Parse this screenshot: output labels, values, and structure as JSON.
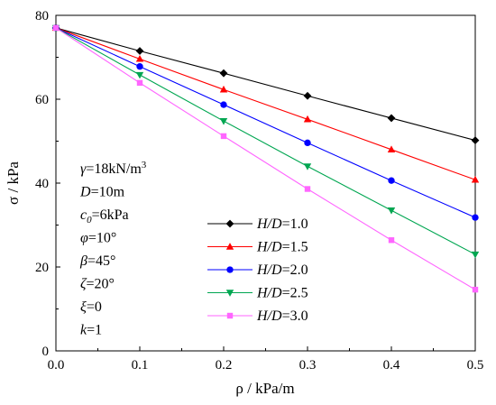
{
  "chart_data": {
    "type": "line",
    "x": [
      0.0,
      0.1,
      0.2,
      0.3,
      0.4,
      0.5
    ],
    "xlim": [
      0.0,
      0.5
    ],
    "ylim": [
      0,
      80
    ],
    "xticks": [
      0.0,
      0.1,
      0.2,
      0.3,
      0.4,
      0.5
    ],
    "yticks": [
      0,
      20,
      40,
      60,
      80
    ],
    "xtick_labels": [
      "0.0",
      "0.1",
      "0.2",
      "0.3",
      "0.4",
      "0.5"
    ],
    "ytick_labels": [
      "0",
      "20",
      "40",
      "60",
      "80"
    ],
    "xlabel": "ρ / kPa/m",
    "ylabel": "σ / kPa",
    "grid": false,
    "legend_position": "bottom-center",
    "series": [
      {
        "name": "H/D=1.0",
        "label_italic": "H/D",
        "label_rest": "=1.0",
        "color": "#000000",
        "marker": "diamond",
        "values": [
          77,
          71.5,
          66.2,
          60.8,
          55.5,
          50.2
        ]
      },
      {
        "name": "H/D=1.5",
        "label_italic": "H/D",
        "label_rest": "=1.5",
        "color": "#ff0000",
        "marker": "triangle-up",
        "values": [
          77,
          69.6,
          62.3,
          55.2,
          48.0,
          40.8
        ]
      },
      {
        "name": "H/D=2.0",
        "label_italic": "H/D",
        "label_rest": "=2.0",
        "color": "#0000ff",
        "marker": "circle",
        "values": [
          77,
          67.8,
          58.7,
          49.6,
          40.6,
          31.8
        ]
      },
      {
        "name": "H/D=2.5",
        "label_italic": "H/D",
        "label_rest": "=2.5",
        "color": "#00a651",
        "marker": "triangle-down",
        "values": [
          77,
          65.8,
          54.8,
          44.0,
          33.5,
          23.0
        ]
      },
      {
        "name": "H/D=3.0",
        "label_italic": "H/D",
        "label_rest": "=3.0",
        "color": "#ff66ff",
        "marker": "square",
        "values": [
          77,
          63.9,
          51.2,
          38.6,
          26.4,
          14.6
        ]
      }
    ],
    "annotations": [
      {
        "id": "gamma",
        "sym": "γ",
        "sub": "",
        "rest": "=18kN/m",
        "sup": "3"
      },
      {
        "id": "D",
        "sym": "D",
        "sub": "",
        "rest": "=10m",
        "sup": ""
      },
      {
        "id": "c0",
        "sym": "c",
        "sub": "0",
        "rest": "=6kPa",
        "sup": ""
      },
      {
        "id": "phi",
        "sym": "φ",
        "sub": "",
        "rest": "=10°",
        "sup": ""
      },
      {
        "id": "beta",
        "sym": "β",
        "sub": "",
        "rest": "=45°",
        "sup": ""
      },
      {
        "id": "zeta",
        "sym": "ζ",
        "sub": "",
        "rest": "=20°",
        "sup": ""
      },
      {
        "id": "xi",
        "sym": "ξ",
        "sub": "",
        "rest": "=0",
        "sup": ""
      },
      {
        "id": "k",
        "sym": "k",
        "sub": "",
        "rest": "=1",
        "sup": ""
      }
    ]
  }
}
